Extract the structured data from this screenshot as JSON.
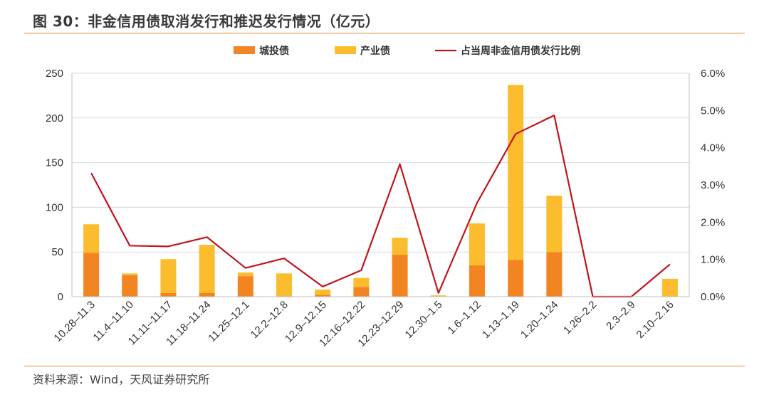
{
  "header": {
    "title": "图 30：非金信用债取消发行和推迟发行情况（亿元）"
  },
  "footer": {
    "source": "资料来源：Wind，天风证券研究所"
  },
  "colors": {
    "chengtou": "#F28522",
    "chanye": "#FBBC2E",
    "ratio": "#C0141B",
    "rule": "#D98A3A"
  },
  "chart_data": {
    "type": "bar",
    "stacked": true,
    "categories": [
      "10.28–11.3",
      "11.4–11.10",
      "11.11–11.17",
      "11.18–11.24",
      "11.25–12.1",
      "12.2–12.8",
      "12.9–12.15",
      "12.16–12.22",
      "12.23–12.29",
      "12.30–1.5",
      "1.6–1.12",
      "1.13–1.19",
      "1.20–1.24",
      "1.26–2.2",
      "2.3–2.9",
      "2.10–2.16"
    ],
    "series": [
      {
        "name": "城投债",
        "type": "bar",
        "axis": "left",
        "values": [
          49,
          24,
          4,
          4,
          23,
          0,
          2,
          11,
          47,
          0.5,
          35,
          41,
          50,
          0,
          0,
          0
        ]
      },
      {
        "name": "产业债",
        "type": "bar",
        "axis": "left",
        "values": [
          32,
          2,
          38,
          54,
          4,
          26,
          6,
          10,
          19,
          1,
          47,
          196,
          63,
          0,
          0,
          20
        ]
      },
      {
        "name": "占当周非金信用债发行比例",
        "type": "line",
        "axis": "right",
        "values": [
          3.32,
          1.37,
          1.35,
          1.6,
          0.77,
          1.03,
          0.27,
          0.71,
          3.56,
          0.1,
          2.52,
          4.37,
          4.87,
          0.0,
          0.0,
          0.87
        ]
      }
    ],
    "y_left": {
      "min": 0,
      "max": 250,
      "ticks": [
        "0",
        "50",
        "100",
        "150",
        "200",
        "250"
      ]
    },
    "y_right": {
      "min": 0,
      "max": 6,
      "ticks": [
        "0.0%",
        "1.0%",
        "2.0%",
        "3.0%",
        "4.0%",
        "5.0%",
        "6.0%"
      ]
    },
    "grid": true,
    "legend_position": "top"
  }
}
